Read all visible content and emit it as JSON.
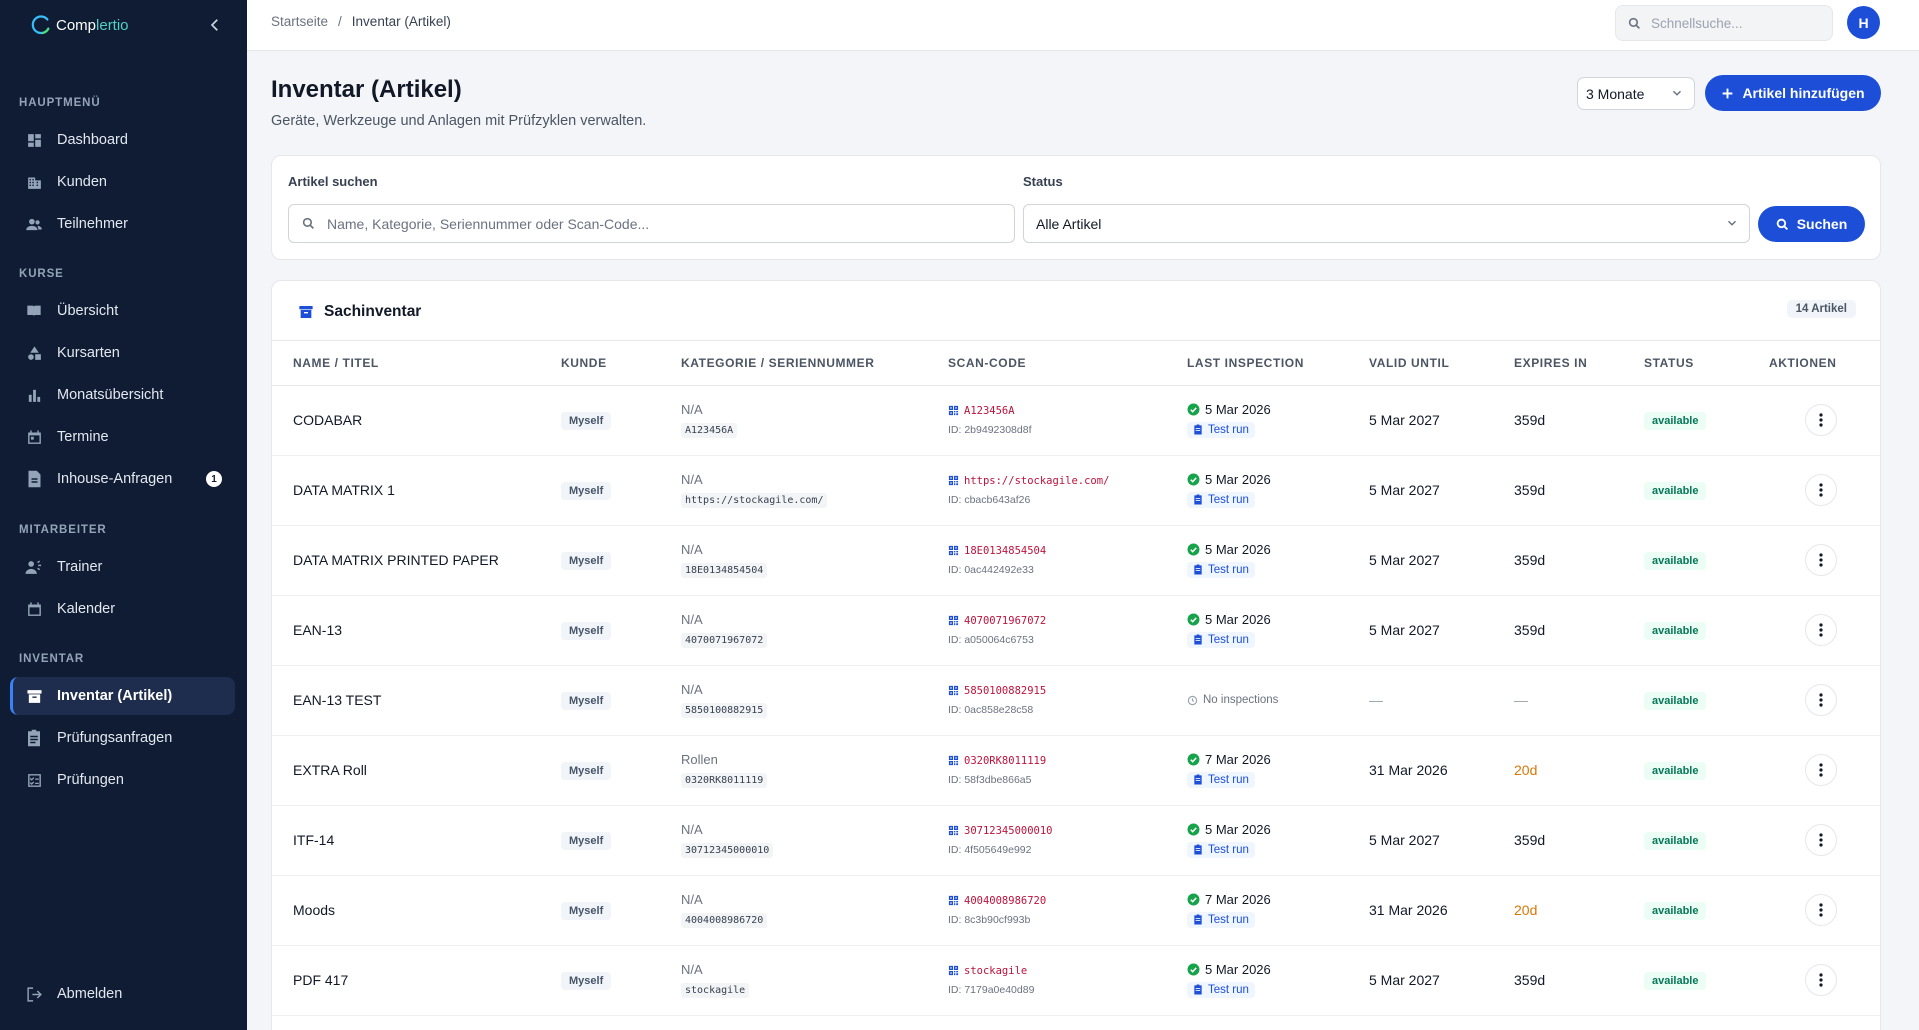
{
  "brand": {
    "part1": "Comp",
    "part2": "lertio"
  },
  "sidebar": {
    "sections": [
      {
        "title": "HAUPTMENÜ"
      },
      {
        "title": "KURSE"
      },
      {
        "title": "MITARBEITER"
      },
      {
        "title": "INVENTAR"
      }
    ],
    "items": [
      {
        "label": "Dashboard",
        "icon": "dashboard-icon"
      },
      {
        "label": "Kunden",
        "icon": "building-icon"
      },
      {
        "label": "Teilnehmer",
        "icon": "people-icon"
      },
      {
        "label": "Übersicht",
        "icon": "book-icon"
      },
      {
        "label": "Kursarten",
        "icon": "shapes-icon"
      },
      {
        "label": "Monatsübersicht",
        "icon": "bar-chart-icon"
      },
      {
        "label": "Termine",
        "icon": "calendar-icon"
      },
      {
        "label": "Inhouse-Anfragen",
        "icon": "document-icon",
        "badge": "1"
      },
      {
        "label": "Trainer",
        "icon": "trainer-icon"
      },
      {
        "label": "Kalender",
        "icon": "calendar-icon"
      },
      {
        "label": "Inventar (Artikel)",
        "icon": "inventory-icon",
        "active": true
      },
      {
        "label": "Prüfungsanfragen",
        "icon": "clipboard-icon"
      },
      {
        "label": "Prüfungen",
        "icon": "checklist-icon"
      }
    ],
    "logout": "Abmelden"
  },
  "topbar": {
    "breadcrumb": [
      "Startseite",
      "/",
      "Inventar (Artikel)"
    ],
    "search_placeholder": "Schnellsuche...",
    "avatar": "H"
  },
  "page": {
    "title": "Inventar (Artikel)",
    "subtitle": "Geräte, Werkzeuge und Anlagen mit Prüfzyklen verwalten.",
    "period": "3 Monate",
    "add_label": "Artikel hinzufügen"
  },
  "filter": {
    "search_label": "Artikel suchen",
    "search_placeholder": "Name, Kategorie, Seriennummer oder Scan-Code...",
    "status_label": "Status",
    "status_value": "Alle Artikel",
    "search_button": "Suchen"
  },
  "table": {
    "title": "Sachinventar",
    "count": "14 Artikel",
    "columns": [
      "NAME / TITEL",
      "KUNDE",
      "KATEGORIE / SERIENNUMMER",
      "SCAN-CODE",
      "LAST INSPECTION",
      "VALID UNTIL",
      "EXPIRES IN",
      "STATUS",
      "AKTIONEN"
    ],
    "rows": [
      {
        "name": "CODABAR",
        "kunde": "Myself",
        "kategorie": "N/A",
        "serial": "A123456A",
        "scan": "A123456A",
        "scan_id": "ID: 2b9492308d8f",
        "insp_date": "5 Mar 2026",
        "insp_label": "Test run",
        "valid": "5 Mar 2027",
        "expires": "359d",
        "status": "available"
      },
      {
        "name": "DATA MATRIX 1",
        "kunde": "Myself",
        "kategorie": "N/A",
        "serial": "https://stockagile.com/",
        "scan": "https://stockagile.com/",
        "scan_id": "ID: cbacb643af26",
        "insp_date": "5 Mar 2026",
        "insp_label": "Test run",
        "valid": "5 Mar 2027",
        "expires": "359d",
        "status": "available"
      },
      {
        "name": "DATA MATRIX PRINTED PAPER",
        "kunde": "Myself",
        "kategorie": "N/A",
        "serial": "18E0134854504",
        "scan": "18E0134854504",
        "scan_id": "ID: 0ac442492e33",
        "insp_date": "5 Mar 2026",
        "insp_label": "Test run",
        "valid": "5 Mar 2027",
        "expires": "359d",
        "status": "available"
      },
      {
        "name": "EAN-13",
        "kunde": "Myself",
        "kategorie": "N/A",
        "serial": "4070071967072",
        "scan": "4070071967072",
        "scan_id": "ID: a050064c6753",
        "insp_date": "5 Mar 2026",
        "insp_label": "Test run",
        "valid": "5 Mar 2027",
        "expires": "359d",
        "status": "available"
      },
      {
        "name": "EAN-13 TEST",
        "kunde": "Myself",
        "kategorie": "N/A",
        "serial": "5850100882915",
        "scan": "5850100882915",
        "scan_id": "ID: 0ac858e28c58",
        "no_insp": "No inspections",
        "valid": "—",
        "expires": "—",
        "status": "available"
      },
      {
        "name": "EXTRA Roll",
        "kunde": "Myself",
        "kategorie": "Rollen",
        "serial": "0320RK8011119",
        "scan": "0320RK8011119",
        "scan_id": "ID: 58f3dbe866a5",
        "insp_date": "7 Mar 2026",
        "insp_label": "Test run",
        "valid": "31 Mar 2026",
        "expires": "20d",
        "warn": true,
        "status": "available"
      },
      {
        "name": "ITF-14",
        "kunde": "Myself",
        "kategorie": "N/A",
        "serial": "30712345000010",
        "scan": "30712345000010",
        "scan_id": "ID: 4f505649e992",
        "insp_date": "5 Mar 2026",
        "insp_label": "Test run",
        "valid": "5 Mar 2027",
        "expires": "359d",
        "status": "available"
      },
      {
        "name": "Moods",
        "kunde": "Myself",
        "kategorie": "N/A",
        "serial": "4004008986720",
        "scan": "4004008986720",
        "scan_id": "ID: 8c3b90cf993b",
        "insp_date": "7 Mar 2026",
        "insp_label": "Test run",
        "valid": "31 Mar 2026",
        "expires": "20d",
        "warn": true,
        "status": "available"
      },
      {
        "name": "PDF 417",
        "kunde": "Myself",
        "kategorie": "N/A",
        "serial": "stockagile",
        "scan": "stockagile",
        "scan_id": "ID: 7179a0e40d89",
        "insp_date": "5 Mar 2026",
        "insp_label": "Test run",
        "valid": "5 Mar 2027",
        "expires": "359d",
        "status": "available"
      }
    ]
  }
}
